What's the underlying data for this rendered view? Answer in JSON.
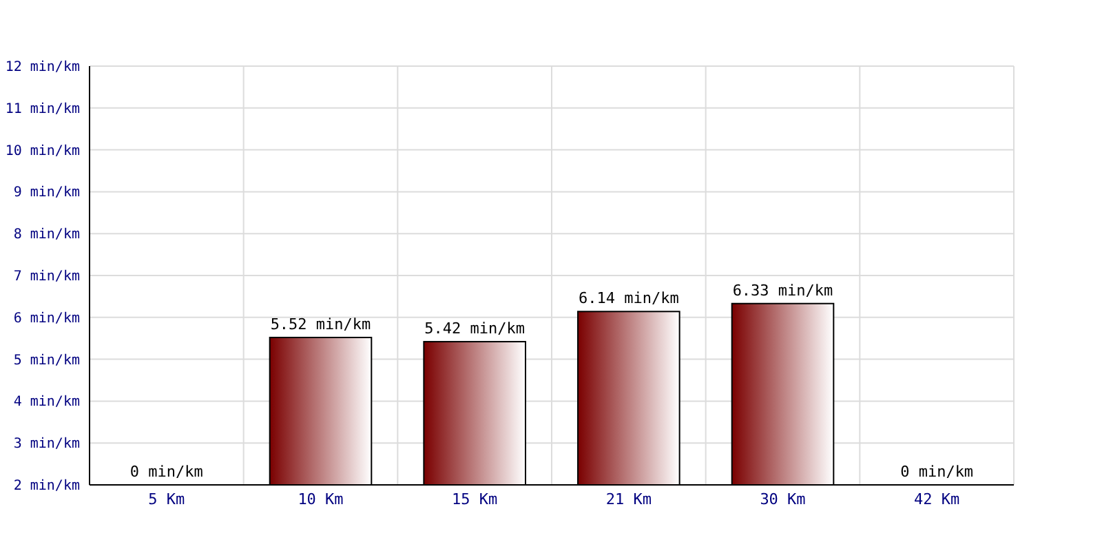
{
  "chart_data": {
    "type": "bar",
    "categories": [
      "5 Km",
      "10 Km",
      "15 Km",
      "21 Km",
      "30 Km",
      "42 Km"
    ],
    "values": [
      null,
      5.52,
      5.42,
      6.14,
      6.33,
      null
    ],
    "value_labels": [
      "0 min/km",
      "5.52 min/km",
      "5.42 min/km",
      "6.14 min/km",
      "6.33 min/km",
      "0 min/km"
    ],
    "color": "#7a0000",
    "ylim": [
      2,
      12
    ],
    "yticks": [
      {
        "value": 2,
        "label": "2 min/km"
      },
      {
        "value": 3,
        "label": "3 min/km"
      },
      {
        "value": 4,
        "label": "4 min/km"
      },
      {
        "value": 5,
        "label": "5 min/km"
      },
      {
        "value": 6,
        "label": "6 min/km"
      },
      {
        "value": 7,
        "label": "7 min/km"
      },
      {
        "value": 8,
        "label": "8 min/km"
      },
      {
        "value": 9,
        "label": "9 min/km"
      },
      {
        "value": 10,
        "label": "10 min/km"
      },
      {
        "value": 11,
        "label": "11 min/km"
      },
      {
        "value": 12,
        "label": "12 min/km"
      }
    ],
    "grid": true
  }
}
